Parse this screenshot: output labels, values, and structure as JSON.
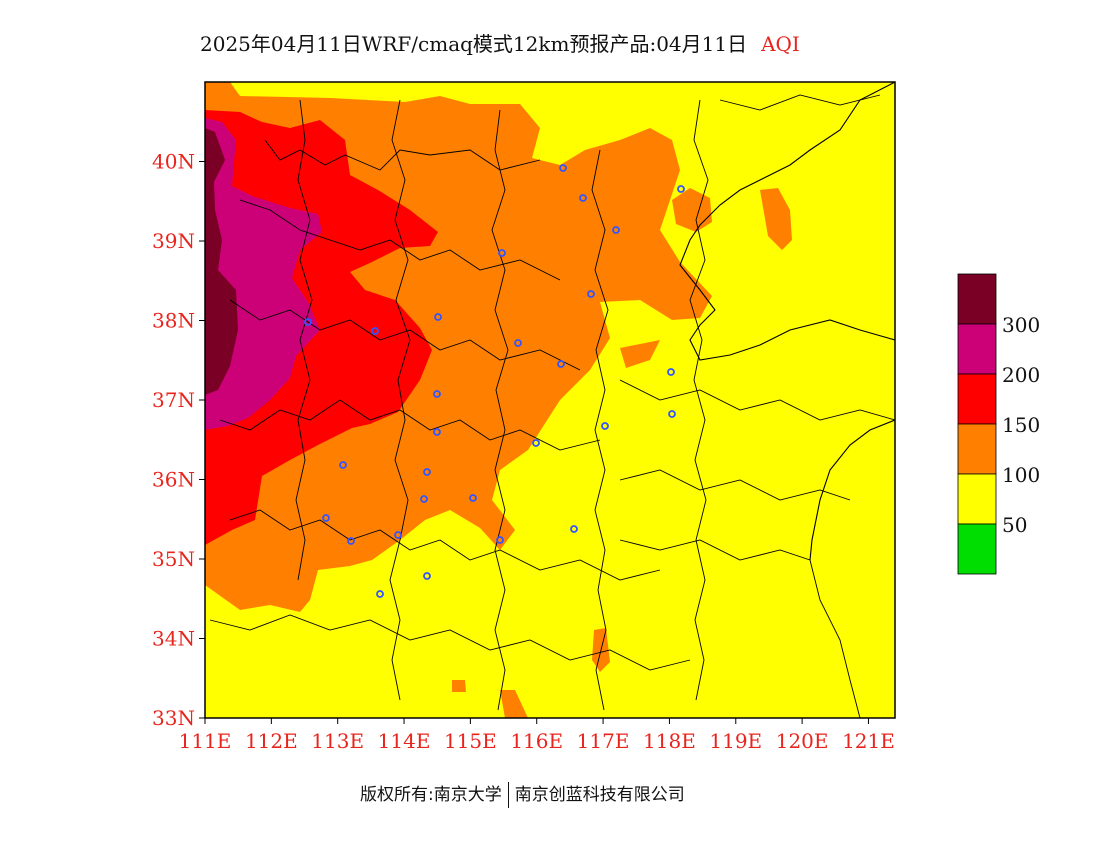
{
  "title": {
    "main": "2025年04月11日WRF/cmaq模式12km预报产品:04月11日",
    "variable": "AQI"
  },
  "axes": {
    "lat_labels": [
      "40N",
      "39N",
      "38N",
      "37N",
      "36N",
      "35N",
      "34N",
      "33N"
    ],
    "lat_values": [
      40,
      39,
      38,
      37,
      36,
      35,
      34,
      33
    ],
    "lon_labels": [
      "111E",
      "112E",
      "113E",
      "114E",
      "115E",
      "116E",
      "117E",
      "118E",
      "119E",
      "120E",
      "121E"
    ],
    "lon_values": [
      111,
      112,
      113,
      114,
      115,
      116,
      117,
      118,
      119,
      120,
      121
    ],
    "lat_range": [
      33,
      41
    ],
    "lon_range": [
      111,
      121.4
    ],
    "label_color": "#e8251d"
  },
  "legend": {
    "labels": [
      "300",
      "200",
      "150",
      "100",
      "50"
    ],
    "colors": [
      "#7a0026",
      "#cc0077",
      "#ff0000",
      "#ff8000",
      "#ffff00",
      "#00dd00"
    ]
  },
  "footer": {
    "copyright": "版权所有:南京大学",
    "company": "南京创蓝科技有限公司"
  },
  "field_colors": {
    "good": "#00dd00",
    "moderate": "#ffff00",
    "sensitive": "#ff8000",
    "unhealthy": "#ff0000",
    "very_unhealthy": "#cc0077",
    "hazardous": "#7a0026",
    "station_marker": "#3355ff"
  }
}
